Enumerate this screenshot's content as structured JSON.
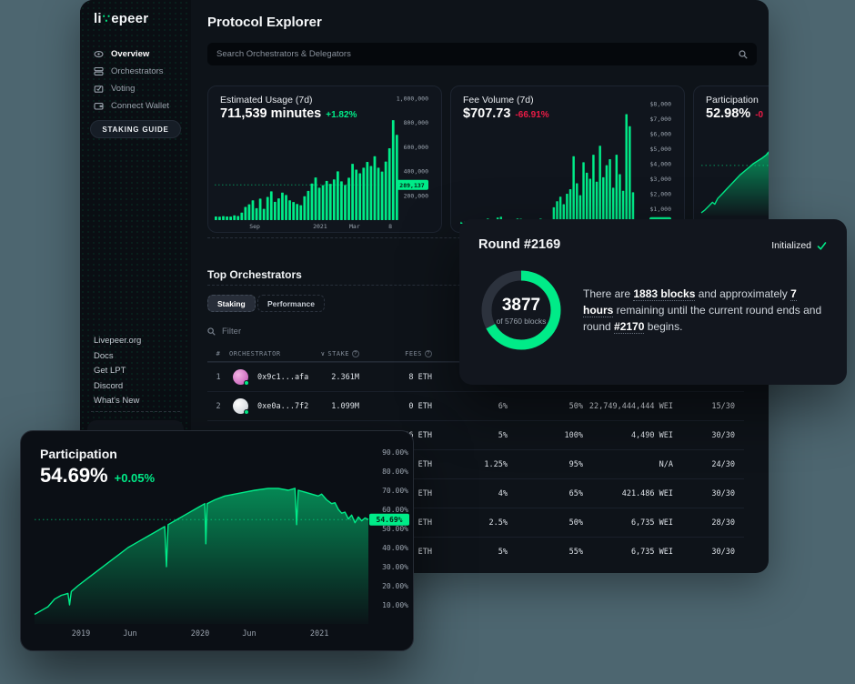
{
  "colors": {
    "green": "#00eb88",
    "red": "#eb1b46",
    "page_bg": "#4d6670"
  },
  "sidebar": {
    "logo": {
      "prefix": "li",
      "suffix": "epeer"
    },
    "nav": [
      {
        "label": "Overview",
        "icon": "eye-icon",
        "active": true
      },
      {
        "label": "Orchestrators",
        "icon": "orchestrators-icon",
        "active": false
      },
      {
        "label": "Voting",
        "icon": "voting-icon",
        "active": false
      },
      {
        "label": "Connect Wallet",
        "icon": "wallet-icon",
        "active": false
      }
    ],
    "cta": "STAKING GUIDE",
    "links": [
      "Livepeer.org",
      "Docs",
      "Get LPT",
      "Discord",
      "What's New"
    ]
  },
  "header": {
    "title": "Protocol Explorer",
    "search_placeholder": "Search Orchestrators & Delegators"
  },
  "round_card": {
    "title": "Round #2169",
    "status": "Initialized",
    "donut": {
      "value": 3877,
      "total": 5760,
      "center_label": "3877",
      "sub_label": "of 5760 blocks"
    },
    "message_parts": [
      {
        "text": "There are ",
        "bold": false
      },
      {
        "text": "1883 blocks",
        "bold": true
      },
      {
        "text": " and approximately ",
        "bold": false
      },
      {
        "text": "7 hours",
        "bold": true
      },
      {
        "text": " remaining until the current round ends and round ",
        "bold": false
      },
      {
        "text": "#2170",
        "bold": true
      },
      {
        "text": " begins.",
        "bold": false
      }
    ]
  },
  "orchestrators": {
    "title": "Top Orchestrators",
    "tabs": [
      {
        "label": "Staking",
        "active": true
      },
      {
        "label": "Performance",
        "active": false
      }
    ],
    "filter_placeholder": "Filter",
    "columns": [
      {
        "label": "#"
      },
      {
        "label": "ORCHESTRATOR"
      },
      {
        "label": "STAKE",
        "sort": true,
        "help": true
      },
      {
        "label": "FEES",
        "help": true
      },
      {
        "label": ""
      },
      {
        "label": ""
      },
      {
        "label": ""
      },
      {
        "label": ""
      }
    ],
    "rows": [
      {
        "rank": "1",
        "address": "0x9c1...afa",
        "avatar": "pink",
        "stake": "2.361M",
        "fees": "8 ETH",
        "c5": "",
        "c6": "",
        "c7": "",
        "c8": ""
      },
      {
        "rank": "2",
        "address": "0xe0a...7f2",
        "avatar": "light",
        "stake": "1.099M",
        "fees": "0 ETH",
        "c5": "6%",
        "c6": "50%",
        "c7": "22,749,444,444 WEI",
        "c8": "15/30"
      },
      {
        "rank": "",
        "address": "",
        "avatar": "",
        "stake": "",
        "fees": "66 ETH",
        "c5": "5%",
        "c6": "100%",
        "c7": "4,490 WEI",
        "c8": "30/30"
      },
      {
        "rank": "",
        "address": "",
        "avatar": "",
        "stake": "",
        "fees": "01 ETH",
        "c5": "1.25%",
        "c6": "95%",
        "c7": "N/A",
        "c8": "24/30"
      },
      {
        "rank": "",
        "address": "",
        "avatar": "",
        "stake": "",
        "fees": "84 ETH",
        "c5": "4%",
        "c6": "65%",
        "c7": "421.486 WEI",
        "c8": "30/30"
      },
      {
        "rank": "",
        "address": "",
        "avatar": "",
        "stake": "",
        "fees": "18 ETH",
        "c5": "2.5%",
        "c6": "50%",
        "c7": "6,735 WEI",
        "c8": "28/30"
      },
      {
        "rank": "",
        "address": "",
        "avatar": "",
        "stake": "",
        "fees": "26 ETH",
        "c5": "5%",
        "c6": "55%",
        "c7": "6,735 WEI",
        "c8": "30/30"
      }
    ]
  },
  "chart_data": [
    {
      "id": "usage",
      "type": "bar",
      "title": "Estimated Usage (7d)",
      "headline_value": "711,539 minutes",
      "headline_delta": "+1.82%",
      "delta_positive": true,
      "ylabel": "minutes",
      "ylim": [
        0,
        1000000
      ],
      "y_ticks": [
        {
          "label": "1,000,000",
          "value": 1000000
        },
        {
          "label": "800,000",
          "value": 800000
        },
        {
          "label": "600,000",
          "value": 600000
        },
        {
          "label": "400,000",
          "value": 400000
        },
        {
          "label": "200,000",
          "value": 200000
        }
      ],
      "marker": {
        "label": "289,137",
        "value": 289137
      },
      "x_ticks": [
        {
          "label": "Sep",
          "t": 0.217
        },
        {
          "label": "2021",
          "t": 0.571
        },
        {
          "label": "Mar",
          "t": 0.758
        },
        {
          "label": "8",
          "t": 0.951
        }
      ],
      "values": [
        30000,
        28000,
        33000,
        30000,
        29000,
        39000,
        34000,
        62000,
        108000,
        130000,
        162000,
        98000,
        176000,
        92000,
        190000,
        236000,
        150000,
        178000,
        226000,
        206000,
        162000,
        148000,
        132000,
        122000,
        196000,
        240000,
        300000,
        350000,
        266000,
        286000,
        322000,
        298000,
        334000,
        400000,
        318000,
        288000,
        348000,
        462000,
        414000,
        384000,
        430000,
        478000,
        444000,
        524000,
        430000,
        398000,
        480000,
        590000,
        820000,
        700000
      ]
    },
    {
      "id": "fees",
      "type": "bar",
      "title": "Fee Volume (7d)",
      "headline_value": "$707.73",
      "headline_delta": "-66.91%",
      "delta_positive": false,
      "ylabel": "USD",
      "ylim": [
        0,
        8000
      ],
      "y_ticks": [
        {
          "label": "$8,000",
          "value": 8000
        },
        {
          "label": "$7,000",
          "value": 7000
        },
        {
          "label": "$6,000",
          "value": 6000
        },
        {
          "label": "$5,000",
          "value": 5000
        },
        {
          "label": "$4,000",
          "value": 4000
        },
        {
          "label": "$3,000",
          "value": 3000
        },
        {
          "label": "$2,000",
          "value": 2000
        },
        {
          "label": "$1,000",
          "value": 1000
        }
      ],
      "marker": {
        "label": "$0",
        "value": 100
      },
      "x_ticks": [],
      "values": [
        80,
        60,
        70,
        60,
        80,
        70,
        90,
        250,
        350,
        220,
        160,
        420,
        470,
        260,
        130,
        110,
        90,
        350,
        330,
        240,
        200,
        180,
        160,
        270,
        340,
        200,
        130,
        110,
        1100,
        1500,
        1800,
        1300,
        2000,
        2300,
        4500,
        2700,
        1900,
        4100,
        3400,
        3000,
        4600,
        2800,
        5200,
        3100,
        3900,
        4300,
        2400,
        4600,
        3300,
        2200,
        7300,
        6500,
        2100,
        300
      ]
    },
    {
      "id": "participation-mini",
      "type": "area",
      "title": "Participation",
      "headline_value": "52.98%",
      "headline_delta": "-0",
      "delta_positive": false,
      "ylim": [
        0,
        100
      ],
      "marker": {
        "label": "",
        "value": 52.98
      },
      "points": [
        [
          0,
          3
        ],
        [
          0.05,
          6
        ],
        [
          0.1,
          10
        ],
        [
          0.15,
          14
        ],
        [
          0.18,
          12
        ],
        [
          0.22,
          18
        ],
        [
          0.28,
          23
        ],
        [
          0.34,
          28
        ],
        [
          0.4,
          33
        ],
        [
          0.46,
          38
        ],
        [
          0.52,
          43
        ],
        [
          0.58,
          47
        ],
        [
          0.64,
          51
        ],
        [
          0.7,
          55
        ],
        [
          0.76,
          58
        ],
        [
          0.82,
          61
        ],
        [
          0.87,
          64
        ],
        [
          0.9,
          67
        ],
        [
          0.92,
          60
        ],
        [
          0.95,
          66
        ],
        [
          1,
          63
        ]
      ]
    },
    {
      "id": "participation",
      "type": "area",
      "title": "Participation",
      "headline_value": "54.69%",
      "headline_delta": "+0.05%",
      "delta_positive": true,
      "ylim": [
        0,
        100
      ],
      "y_ticks": [
        {
          "label": "90.00%",
          "value": 90
        },
        {
          "label": "80.00%",
          "value": 80
        },
        {
          "label": "70.00%",
          "value": 70
        },
        {
          "label": "60.00%",
          "value": 60
        },
        {
          "label": "50.00%",
          "value": 50
        },
        {
          "label": "40.00%",
          "value": 40
        },
        {
          "label": "30.00%",
          "value": 30
        },
        {
          "label": "20.00%",
          "value": 20
        },
        {
          "label": "10.00%",
          "value": 10
        }
      ],
      "marker": {
        "label": "54.69%",
        "value": 54.69
      },
      "x_ticks": [
        {
          "label": "2019",
          "t": 0.139
        },
        {
          "label": "Jun",
          "t": 0.286
        },
        {
          "label": "2020",
          "t": 0.496
        },
        {
          "label": "Jun",
          "t": 0.643
        },
        {
          "label": "2021",
          "t": 0.853
        }
      ],
      "points": [
        [
          0,
          5
        ],
        [
          0.01,
          6
        ],
        [
          0.02,
          7
        ],
        [
          0.03,
          8
        ],
        [
          0.04,
          9
        ],
        [
          0.05,
          11
        ],
        [
          0.06,
          13
        ],
        [
          0.08,
          15
        ],
        [
          0.1,
          16
        ],
        [
          0.105,
          10
        ],
        [
          0.11,
          17
        ],
        [
          0.13,
          20
        ],
        [
          0.16,
          24
        ],
        [
          0.19,
          28
        ],
        [
          0.22,
          32
        ],
        [
          0.25,
          36
        ],
        [
          0.28,
          40
        ],
        [
          0.31,
          43
        ],
        [
          0.34,
          46
        ],
        [
          0.37,
          49
        ],
        [
          0.39,
          51
        ],
        [
          0.395,
          30
        ],
        [
          0.4,
          52
        ],
        [
          0.43,
          55
        ],
        [
          0.46,
          58
        ],
        [
          0.49,
          61
        ],
        [
          0.51,
          63
        ],
        [
          0.513,
          42
        ],
        [
          0.517,
          63
        ],
        [
          0.54,
          65
        ],
        [
          0.57,
          67
        ],
        [
          0.6,
          68
        ],
        [
          0.63,
          69
        ],
        [
          0.66,
          70
        ],
        [
          0.7,
          71
        ],
        [
          0.73,
          71
        ],
        [
          0.76,
          70
        ],
        [
          0.78,
          71
        ],
        [
          0.785,
          52
        ],
        [
          0.79,
          70
        ],
        [
          0.81,
          69
        ],
        [
          0.83,
          68
        ],
        [
          0.85,
          67
        ],
        [
          0.86,
          68
        ],
        [
          0.875,
          65
        ],
        [
          0.89,
          63
        ],
        [
          0.9,
          63.5
        ],
        [
          0.91,
          60
        ],
        [
          0.92,
          58
        ],
        [
          0.93,
          58.5
        ],
        [
          0.94,
          55
        ],
        [
          0.95,
          57
        ],
        [
          0.96,
          53
        ],
        [
          0.97,
          56
        ],
        [
          0.98,
          54
        ],
        [
          0.99,
          55.5
        ],
        [
          1,
          54.7
        ]
      ]
    }
  ]
}
